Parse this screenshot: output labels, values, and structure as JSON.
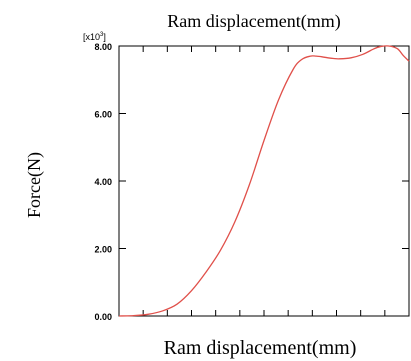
{
  "chart_data": {
    "type": "line",
    "title": "Ram displacement(mm)",
    "xlabel": "Ram displacement(mm)",
    "ylabel": "Force(N)",
    "y_multiplier_label": "[x10",
    "y_multiplier_exp": "3",
    "y_multiplier_close": "]",
    "y_ticks": [
      "0.00",
      "2.00",
      "4.00",
      "6.00",
      "8.00"
    ],
    "y_tick_values": [
      0,
      2,
      4,
      6,
      8
    ],
    "ylim": [
      0,
      8
    ],
    "xlim": [
      0,
      1
    ],
    "x_minor_ticks": 12,
    "grid": false,
    "line_color": "#e0504a",
    "axis_color": "#000000",
    "series": [
      {
        "x": [
          0,
          0.05,
          0.1,
          0.15,
          0.2,
          0.25,
          0.3,
          0.35,
          0.4,
          0.45,
          0.5,
          0.55,
          0.6,
          0.63,
          0.66,
          0.68,
          0.7,
          0.72,
          0.74,
          0.76,
          0.8,
          0.84,
          0.88,
          0.9,
          0.93,
          0.96,
          0.98,
          1.0
        ],
        "y": [
          0.0,
          0.01,
          0.05,
          0.15,
          0.35,
          0.75,
          1.3,
          1.95,
          2.8,
          3.9,
          5.2,
          6.4,
          7.3,
          7.6,
          7.7,
          7.7,
          7.68,
          7.65,
          7.63,
          7.62,
          7.65,
          7.75,
          7.92,
          7.98,
          8.0,
          7.92,
          7.72,
          7.55
        ]
      }
    ]
  }
}
